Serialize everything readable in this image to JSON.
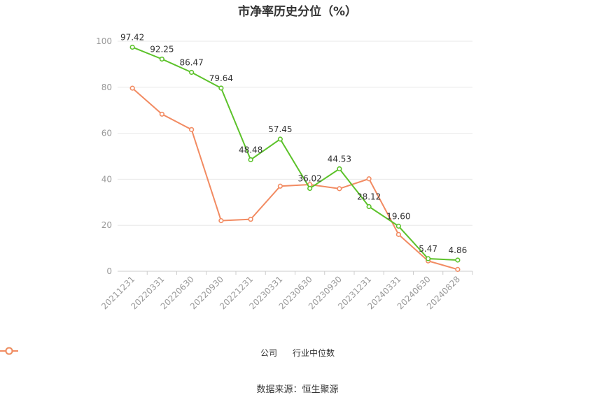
{
  "chart_data": {
    "type": "line",
    "title": "市净率历史分位（%）",
    "categories": [
      "20211231",
      "20220331",
      "20220630",
      "20220930",
      "20221231",
      "20230331",
      "20230630",
      "20230930",
      "20231231",
      "20240331",
      "20240630",
      "20240828"
    ],
    "series": [
      {
        "name": "公司",
        "color": "#5cc22a",
        "values": [
          97.42,
          92.25,
          86.47,
          79.64,
          48.48,
          57.45,
          36.02,
          44.53,
          28.12,
          19.6,
          5.47,
          4.86
        ],
        "labels": [
          "97.42",
          "92.25",
          "86.47",
          "79.64",
          "48.48",
          "57.45",
          "36.02",
          "44.53",
          "28.12",
          "19.60",
          "5.47",
          "4.86"
        ]
      },
      {
        "name": "行业中位数",
        "color": "#f28b62",
        "values": [
          79.6,
          68.3,
          61.6,
          22.0,
          22.6,
          37.0,
          37.7,
          35.9,
          40.2,
          16.0,
          4.5,
          0.8
        ]
      }
    ],
    "yticks": [
      "0",
      "20",
      "40",
      "60",
      "80",
      "100"
    ],
    "ylim": [
      0,
      100
    ],
    "grid": true,
    "legend": "bottom-center"
  },
  "source": "数据来源：恒生聚源"
}
